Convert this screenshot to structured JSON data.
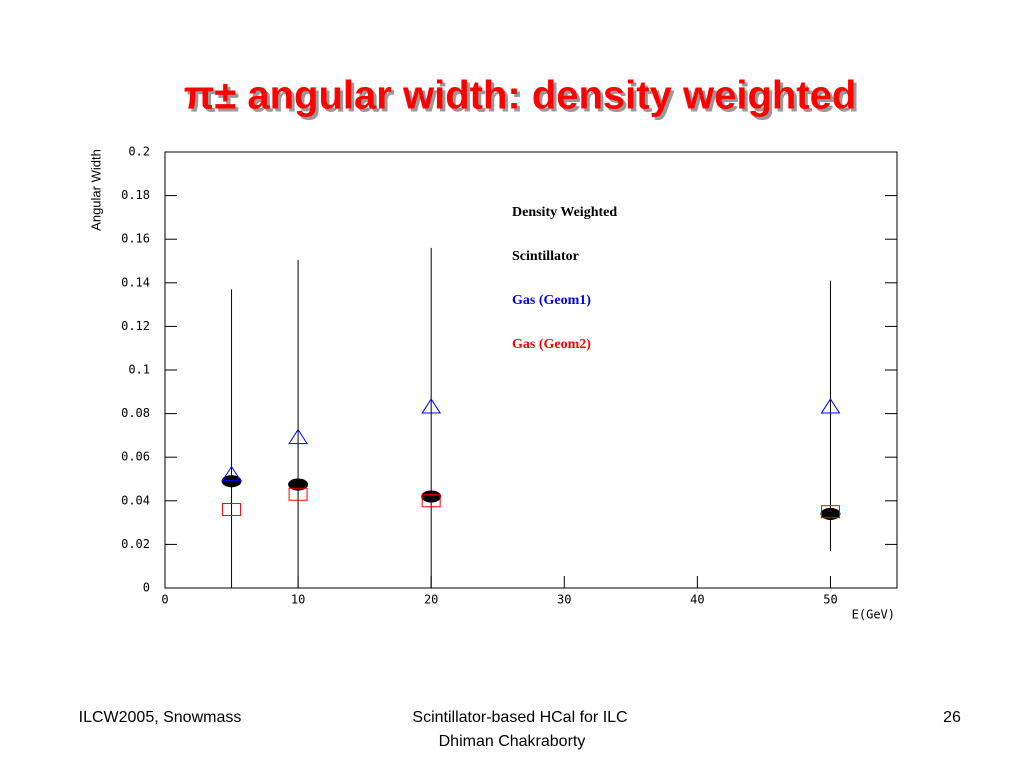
{
  "chart_data": {
    "type": "scatter",
    "title": "π± angular width: density weighted",
    "x_label": "E(GeV)",
    "y_label": "Angular Width",
    "x": [
      5,
      10,
      20,
      50
    ],
    "series": [
      {
        "name": "Density Weighted",
        "color": "#000000",
        "marker": "dot",
        "values": [
          0.049,
          0.0475,
          0.042,
          0.034
        ],
        "error_low": [
          0.049,
          0.0475,
          0.042,
          0.017
        ],
        "error_high": [
          0.088,
          0.103,
          0.114,
          0.107
        ]
      },
      {
        "name": "Scintillator",
        "color": "#000000",
        "marker": "circle",
        "values": [
          0.0485,
          0.047,
          0.0415,
          0.0335
        ]
      },
      {
        "name": "Gas (Geom1)",
        "color": "#0000ff",
        "marker": "triangle",
        "values": [
          0.052,
          0.069,
          0.083,
          0.083
        ]
      },
      {
        "name": "Gas (Geom2)",
        "color": "#ff0000",
        "marker": "square",
        "values": [
          0.036,
          0.043,
          0.04,
          0.035
        ]
      }
    ],
    "xlim": [
      0,
      55
    ],
    "ylim": [
      0,
      0.2
    ],
    "xticks": [
      0,
      10,
      20,
      30,
      40,
      50
    ],
    "yticks": [
      0,
      0.02,
      0.04,
      0.06,
      0.08,
      0.1,
      0.12,
      0.14,
      0.16,
      0.18,
      0.2
    ]
  },
  "footer": {
    "left": "ILCW2005, Snowmass",
    "center": [
      "Scintillator-based HCal for ILC",
      "Dhiman Chakraborty"
    ],
    "right": "26"
  }
}
